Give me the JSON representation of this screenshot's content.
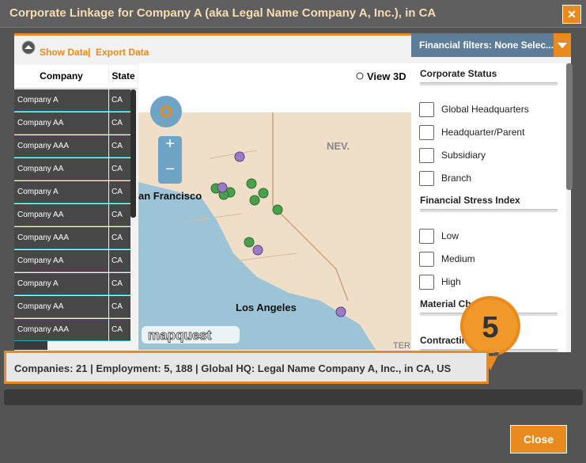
{
  "header": {
    "title": "Corporate Linkage for Company A (aka Legal Name Company A, Inc.), in CA",
    "close_icon": "✕"
  },
  "toolbar": {
    "show_data": "Show Data",
    "separator": "|",
    "export_data": "Export Data",
    "filters_button": "Financial filters: None Selec..."
  },
  "table": {
    "headers": [
      "Company",
      "State"
    ],
    "rows": [
      [
        "Company A",
        "CA"
      ],
      [
        "Company AA",
        "CA"
      ],
      [
        "Company AAA",
        "CA"
      ],
      [
        "Company AA",
        "CA"
      ],
      [
        "Company A",
        "CA"
      ],
      [
        "Company AA",
        "CA"
      ],
      [
        "Company AAA",
        "CA"
      ],
      [
        "Company AA",
        "CA"
      ],
      [
        "Company A",
        "CA"
      ],
      [
        "Company AA",
        "CA"
      ],
      [
        "Company AAA",
        "CA"
      ]
    ]
  },
  "map": {
    "view_3d": "View 3D",
    "labels": [
      "NEV.",
      "an Francisco",
      "Los Angeles",
      "TER"
    ],
    "logo": "mapquest",
    "zoom_in": "+",
    "zoom_out": "−"
  },
  "filters": {
    "sections": [
      {
        "title": "Corporate Status",
        "options": [
          "Global Headquarters",
          "Headquarter/Parent",
          "Subsidiary",
          "Branch"
        ]
      },
      {
        "title": "Financial Stress Index",
        "options": [
          "Low",
          "Medium",
          "High"
        ]
      },
      {
        "title": "Material Change"
      },
      {
        "title": "Contracting"
      }
    ]
  },
  "summary": "Companies: 21 | Employment: 5, 188 | Global HQ: Legal Name Company A, Inc., in CA, US",
  "badge": "5",
  "footer": {
    "close": "Close"
  }
}
